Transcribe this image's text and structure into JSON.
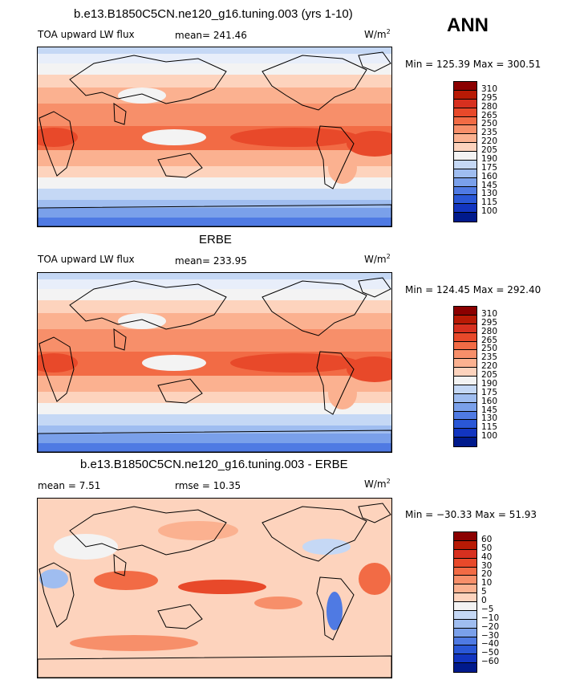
{
  "season": "ANN",
  "panels": [
    {
      "title": "b.e13.B1850C5CN.ne120_g16.tuning.003 (yrs 1-10)",
      "left_label": "TOA upward LW flux",
      "stat": "mean= 241.46",
      "units": "W/m",
      "units_sup": "2",
      "minmax": "Min = 125.39 Max = 300.51",
      "colorbar_levels": [
        "310",
        "295",
        "280",
        "265",
        "250",
        "235",
        "220",
        "205",
        "190",
        "175",
        "160",
        "145",
        "130",
        "115",
        "100"
      ],
      "colorbar_colors": [
        "#8b0000",
        "#b81a05",
        "#d7301f",
        "#e8492a",
        "#f26b45",
        "#f78f6a",
        "#fbb190",
        "#fdd3bd",
        "#f3f3f3",
        "#c5d8f5",
        "#9fbdf0",
        "#7aa0ea",
        "#4f7ae3",
        "#2a57d6",
        "#1235c0",
        "#001a8c"
      ],
      "map_style": "control"
    },
    {
      "title": "ERBE",
      "left_label": "TOA upward LW flux",
      "stat": "mean= 233.95",
      "units": "W/m",
      "units_sup": "2",
      "minmax": "Min = 124.45 Max = 292.40",
      "colorbar_levels": [
        "310",
        "295",
        "280",
        "265",
        "250",
        "235",
        "220",
        "205",
        "190",
        "175",
        "160",
        "145",
        "130",
        "115",
        "100"
      ],
      "colorbar_colors": [
        "#8b0000",
        "#b81a05",
        "#d7301f",
        "#e8492a",
        "#f26b45",
        "#f78f6a",
        "#fbb190",
        "#fdd3bd",
        "#f3f3f3",
        "#c5d8f5",
        "#9fbdf0",
        "#7aa0ea",
        "#4f7ae3",
        "#2a57d6",
        "#1235c0",
        "#001a8c"
      ],
      "map_style": "control"
    },
    {
      "title": "b.e13.B1850C5CN.ne120_g16.tuning.003 - ERBE",
      "left_label": "mean =    7.51",
      "stat": "rmse =   10.35",
      "units": "W/m",
      "units_sup": "2",
      "minmax": "Min = −30.33 Max =   51.93",
      "colorbar_levels": [
        "60",
        "50",
        "40",
        "30",
        "20",
        "10",
        "5",
        "0",
        "−5",
        "−10",
        "−20",
        "−30",
        "−40",
        "−50",
        "−60"
      ],
      "colorbar_colors": [
        "#8b0000",
        "#b81a05",
        "#d7301f",
        "#e8492a",
        "#f26b45",
        "#f78f6a",
        "#fbb190",
        "#fdd3bd",
        "#f3f3f3",
        "#c5d8f5",
        "#9fbdf0",
        "#7aa0ea",
        "#4f7ae3",
        "#2a57d6",
        "#1235c0",
        "#001a8c"
      ],
      "map_style": "diff"
    }
  ]
}
